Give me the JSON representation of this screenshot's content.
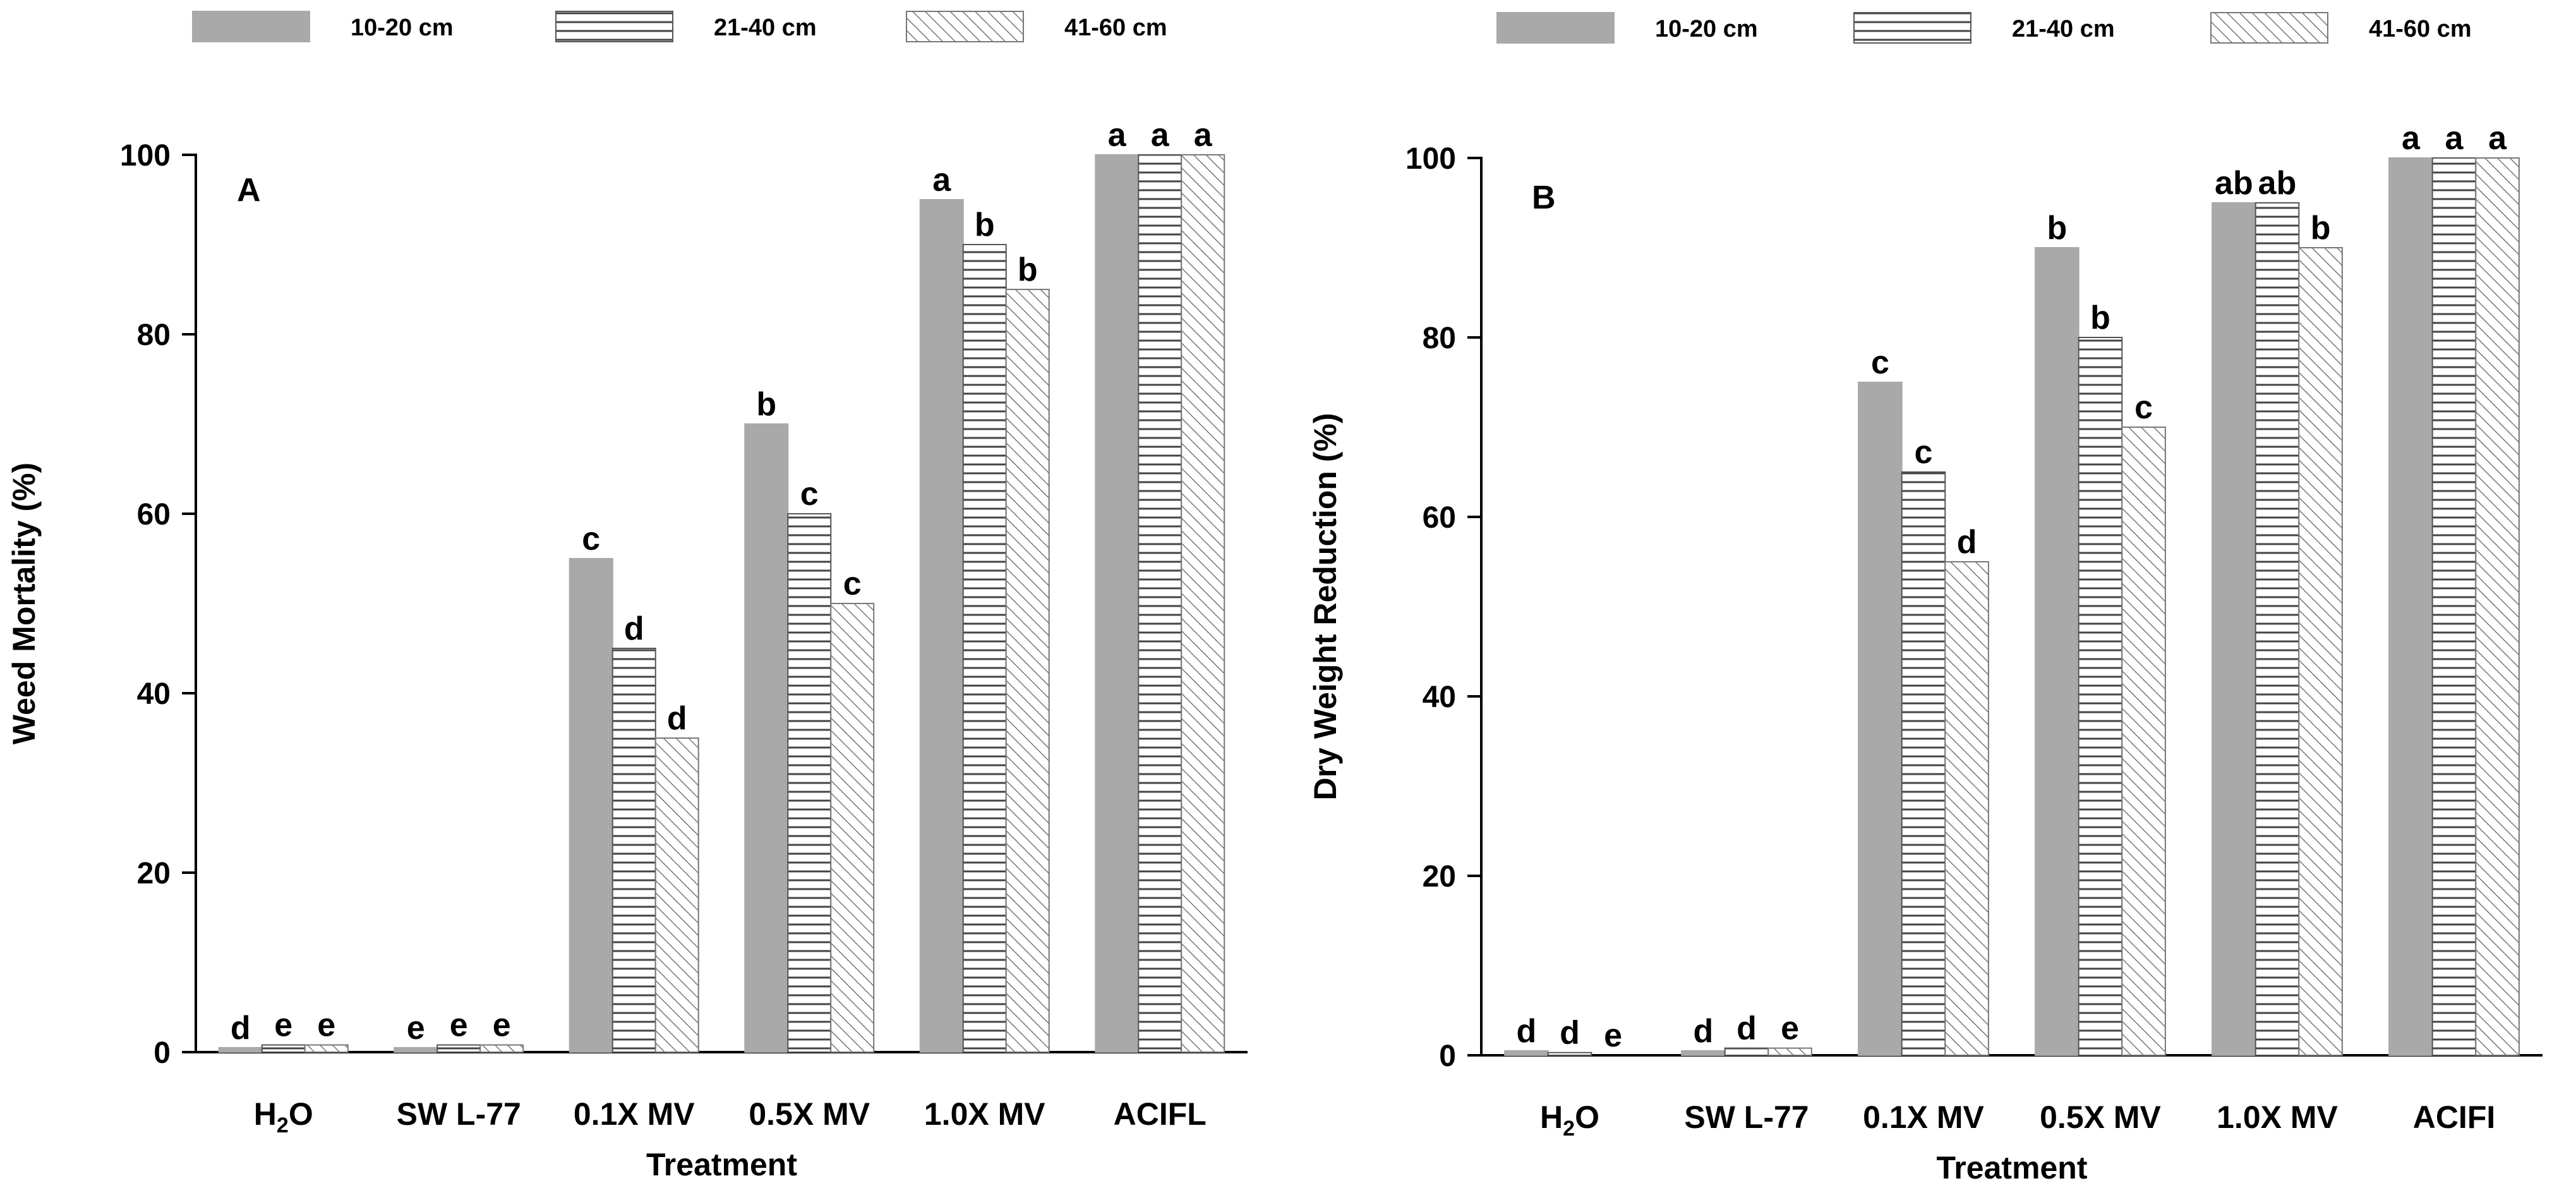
{
  "chart_data": [
    {
      "type": "bar",
      "panel_label": "A",
      "title": "",
      "xlabel": "Treatment",
      "ylabel": "Weed Mortality (%)",
      "ylim": [
        0,
        100
      ],
      "yticks": [
        "0",
        "20",
        "40",
        "60",
        "80",
        "100"
      ],
      "categories": [
        "H2O",
        "SW L-77",
        "0.1X MV",
        "0.5X MV",
        "1.0X MV",
        "ACIFL"
      ],
      "legend": [
        "10-20 cm",
        "21-40 cm",
        "41-60 cm"
      ],
      "series": [
        {
          "name": "10-20 cm",
          "values": [
            0.5,
            0.5,
            55,
            70,
            95,
            100
          ],
          "letters": [
            "d",
            "e",
            "c",
            "b",
            "a",
            "a"
          ]
        },
        {
          "name": "21-40 cm",
          "values": [
            0.8,
            0.8,
            45,
            60,
            90,
            100
          ],
          "letters": [
            "e",
            "e",
            "d",
            "c",
            "b",
            "a"
          ]
        },
        {
          "name": "41-60 cm",
          "values": [
            0.8,
            0.8,
            35,
            50,
            85,
            100
          ],
          "letters": [
            "e",
            "e",
            "d",
            "c",
            "b",
            "a"
          ]
        }
      ]
    },
    {
      "type": "bar",
      "panel_label": "B",
      "title": "",
      "xlabel": "Treatment",
      "ylabel": "Dry Weight Reduction (%)",
      "ylim": [
        0,
        100
      ],
      "yticks": [
        "0",
        "20",
        "40",
        "60",
        "80",
        "100"
      ],
      "categories": [
        "H2O",
        "SW L-77",
        "0.1X MV",
        "0.5X MV",
        "1.0X MV",
        "ACIFI"
      ],
      "legend": [
        "10-20 cm",
        "21-40 cm",
        "41-60 cm"
      ],
      "series": [
        {
          "name": "10-20 cm",
          "values": [
            0.5,
            0.5,
            75,
            90,
            95,
            100
          ],
          "letters": [
            "d",
            "d",
            "c",
            "b",
            "ab",
            "a"
          ]
        },
        {
          "name": "21-40 cm",
          "values": [
            0.3,
            0.8,
            65,
            80,
            95,
            100
          ],
          "letters": [
            "d",
            "d",
            "c",
            "b",
            "ab",
            "a"
          ]
        },
        {
          "name": "41-60 cm",
          "values": [
            0.0,
            0.8,
            55,
            70,
            90,
            100
          ],
          "letters": [
            "e",
            "e",
            "d",
            "c",
            "b",
            "a"
          ]
        }
      ]
    }
  ]
}
